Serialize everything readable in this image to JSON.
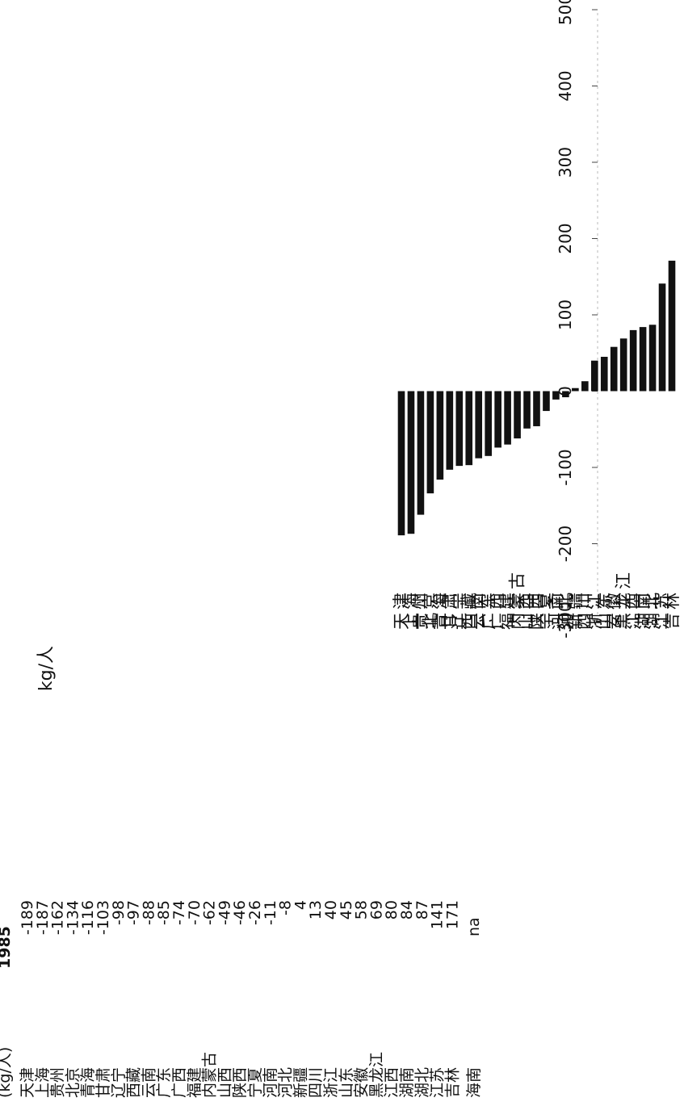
{
  "table": {
    "unit_header": "(kg/人)",
    "year_header": "1985",
    "footer_label": "海南",
    "footer_value": "na",
    "rows": [
      {
        "region": "天津",
        "value": "-189"
      },
      {
        "region": "上海",
        "value": "-187"
      },
      {
        "region": "贵州",
        "value": "-162"
      },
      {
        "region": "北京",
        "value": "-134"
      },
      {
        "region": "青海",
        "value": "-116"
      },
      {
        "region": "甘肃",
        "value": "-103"
      },
      {
        "region": "辽宁",
        "value": "-98"
      },
      {
        "region": "西藏",
        "value": "-97"
      },
      {
        "region": "云南",
        "value": "-88"
      },
      {
        "region": "广东",
        "value": "-85"
      },
      {
        "region": "广西",
        "value": "-74"
      },
      {
        "region": "福建",
        "value": "-70"
      },
      {
        "region": "内蒙古",
        "value": "-62"
      },
      {
        "region": "山西",
        "value": "-49"
      },
      {
        "region": "陕西",
        "value": "-46"
      },
      {
        "region": "宁夏",
        "value": "-26"
      },
      {
        "region": "河南",
        "value": "-11"
      },
      {
        "region": "河北",
        "value": "-8"
      },
      {
        "region": "新疆",
        "value": "4"
      },
      {
        "region": "四川",
        "value": "13"
      },
      {
        "region": "浙江",
        "value": "40"
      },
      {
        "region": "山东",
        "value": "45"
      },
      {
        "region": "安徽",
        "value": "58"
      },
      {
        "region": "黑龙江",
        "value": "69"
      },
      {
        "region": "江西",
        "value": "80"
      },
      {
        "region": "湖南",
        "value": "84"
      },
      {
        "region": "湖北",
        "value": "87"
      },
      {
        "region": "江苏",
        "value": "141"
      },
      {
        "region": "吉林",
        "value": "171"
      }
    ]
  },
  "chart_data": {
    "type": "bar",
    "ylabel": "kg/人",
    "ylim": [
      -300,
      500
    ],
    "yticks": [
      -300,
      -200,
      -100,
      0,
      100,
      200,
      300,
      400,
      500
    ],
    "grid": false,
    "orientation": "rotated 90° counter-clockwise",
    "bar_color": "#111111",
    "categories": [
      "天津",
      "上海",
      "贵州",
      "北京",
      "青海",
      "甘肃",
      "辽宁",
      "西藏",
      "云南",
      "广东",
      "广西",
      "福建",
      "内蒙古",
      "山西",
      "陕西",
      "宁夏",
      "河南",
      "河北",
      "新疆",
      "四川",
      "浙江",
      "山东",
      "安徽",
      "黑龙江",
      "江西",
      "湖南",
      "湖北",
      "江苏",
      "吉林"
    ],
    "values": [
      -189,
      -187,
      -162,
      -134,
      -116,
      -103,
      -98,
      -97,
      -88,
      -85,
      -74,
      -70,
      -62,
      -49,
      -46,
      -26,
      -11,
      -8,
      4,
      13,
      40,
      45,
      58,
      69,
      80,
      84,
      87,
      141,
      171
    ]
  }
}
